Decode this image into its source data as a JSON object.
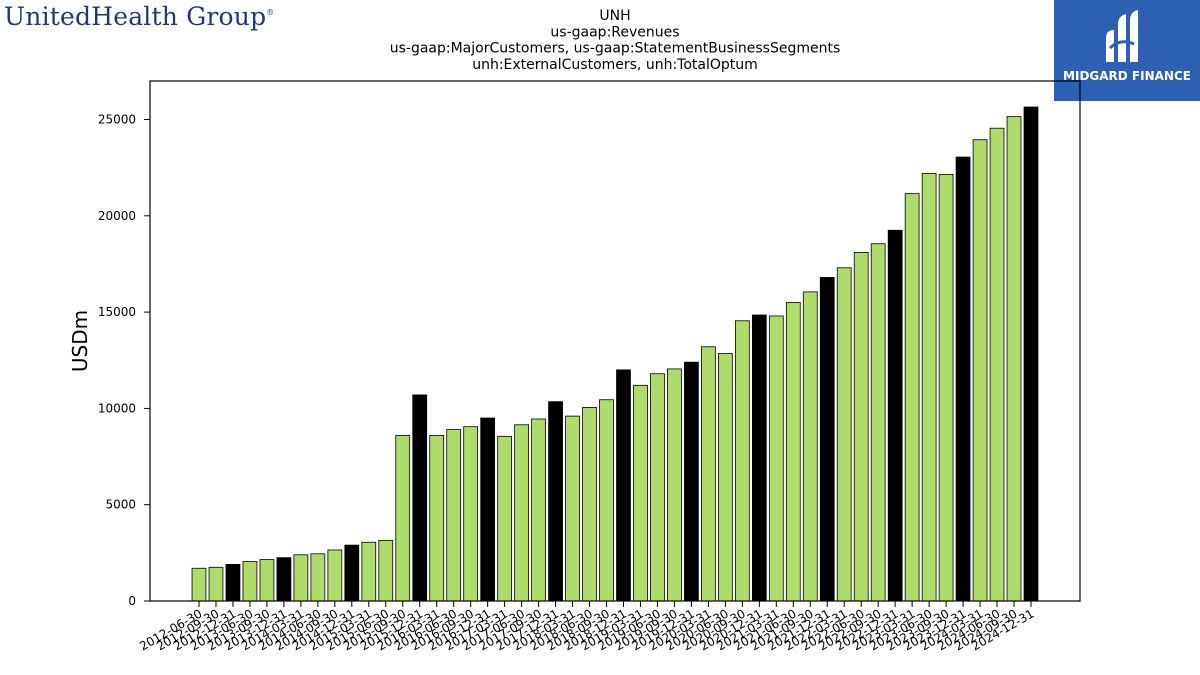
{
  "header": {
    "left_logo_text": "UnitedHealth Group",
    "right_logo_text": "MIDGARD FINANCE"
  },
  "chart_data": {
    "type": "bar",
    "title_lines": [
      "UNH",
      "us-gaap:Revenues",
      "us-gaap:MajorCustomers, us-gaap:StatementBusinessSegments",
      "unh:ExternalCustomers, unh:TotalOptum"
    ],
    "xlabel": "",
    "ylabel": "USDm",
    "ylim": [
      0,
      27000
    ],
    "yticks": [
      0,
      5000,
      10000,
      15000,
      20000,
      25000
    ],
    "grid": false,
    "colors": {
      "quarter": "#addc6b",
      "year_end": "#000000",
      "edge": "#000000"
    },
    "categories": [
      "2012-06-30",
      "2012-09-30",
      "2012-12-31",
      "2013-06-30",
      "2013-09-30",
      "2013-12-31",
      "2014-03-31",
      "2014-06-30",
      "2014-09-30",
      "2014-12-31",
      "2015-03-31",
      "2015-06-30",
      "2015-09-30",
      "2015-12-31",
      "2016-03-31",
      "2016-06-30",
      "2016-09-30",
      "2016-12-31",
      "2017-03-31",
      "2017-06-30",
      "2017-09-30",
      "2017-12-31",
      "2018-03-31",
      "2018-06-30",
      "2018-09-30",
      "2018-12-31",
      "2019-03-31",
      "2019-06-30",
      "2019-09-30",
      "2019-12-31",
      "2020-03-31",
      "2020-06-30",
      "2020-09-30",
      "2020-12-31",
      "2021-03-31",
      "2021-06-30",
      "2021-09-30",
      "2021-12-31",
      "2022-03-31",
      "2022-06-30",
      "2022-09-30",
      "2022-12-31",
      "2023-03-31",
      "2023-06-30",
      "2023-09-30",
      "2023-12-31",
      "2024-03-31",
      "2024-06-30",
      "2024-09-30",
      "2024-12-31"
    ],
    "values": [
      1700,
      1750,
      1900,
      2050,
      2150,
      2250,
      2400,
      2450,
      2650,
      2900,
      3050,
      3150,
      8600,
      10700,
      8600,
      8900,
      9050,
      9500,
      8550,
      9150,
      9450,
      10350,
      9600,
      10050,
      10450,
      12000,
      11200,
      11800,
      12050,
      12400,
      13200,
      12850,
      14550,
      14850,
      14800,
      15500,
      16050,
      16800,
      17300,
      18100,
      18550,
      19250,
      21150,
      22200,
      22150,
      23050,
      23950,
      24550,
      25150,
      25650
    ],
    "year_end_flags": [
      false,
      false,
      true,
      false,
      false,
      true,
      false,
      false,
      false,
      true,
      false,
      false,
      false,
      true,
      false,
      false,
      false,
      true,
      false,
      false,
      false,
      true,
      false,
      false,
      false,
      true,
      false,
      false,
      false,
      true,
      false,
      false,
      false,
      true,
      false,
      false,
      false,
      true,
      false,
      false,
      false,
      true,
      false,
      false,
      false,
      true,
      false,
      false,
      false,
      true
    ]
  }
}
